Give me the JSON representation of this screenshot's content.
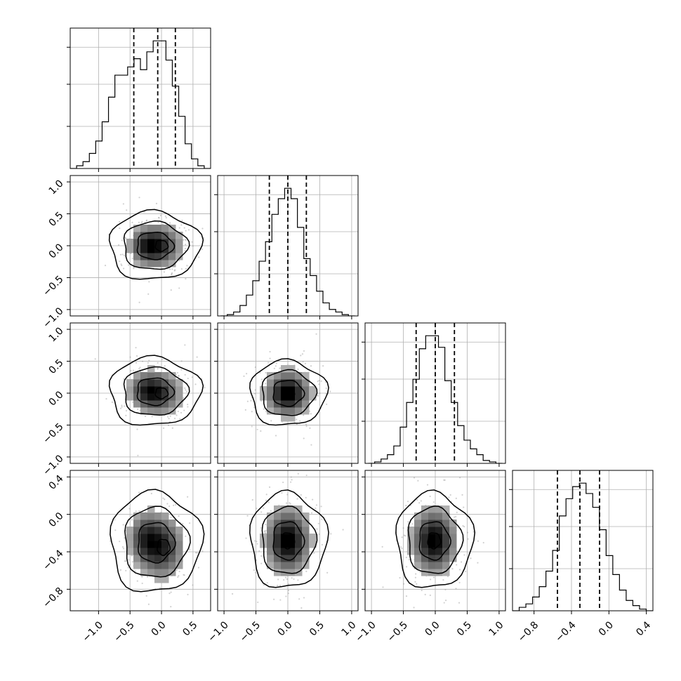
{
  "chart_data": {
    "type": "corner",
    "n_params": 4,
    "grid": true,
    "quantiles": [
      0.16,
      0.5,
      0.84
    ],
    "parameters": [
      {
        "range": [
          -1.45,
          0.78
        ],
        "ticks": [
          -1.0,
          -0.5,
          0.0,
          0.5
        ],
        "tick_labels": [
          "−1.0",
          "−0.5",
          "0.0",
          "0.5"
        ],
        "hist_edges_lo": -1.45,
        "hist_edges_hi": 0.78,
        "hist_counts": [
          0,
          2,
          5,
          11,
          20,
          34,
          52,
          68,
          68,
          74,
          80,
          72,
          85,
          93,
          93,
          79,
          60,
          38,
          18,
          7,
          2,
          0
        ],
        "quantile_values": [
          -0.44,
          -0.06,
          0.22
        ]
      },
      {
        "range": [
          -1.1,
          1.1
        ],
        "ticks": [
          -1.0,
          -0.5,
          0.0,
          0.5,
          1.0
        ],
        "tick_labels": [
          "−1.0",
          "−0.5",
          "0.0",
          "0.5",
          "1.0"
        ],
        "hist_edges_lo": -1.05,
        "hist_edges_hi": 1.05,
        "hist_counts": [
          0,
          1,
          3,
          8,
          16,
          27,
          42,
          57,
          78,
          90,
          98,
          90,
          68,
          44,
          31,
          19,
          10,
          5,
          3,
          1,
          0
        ],
        "quantile_values": [
          -0.29,
          0.0,
          0.29
        ]
      },
      {
        "range": [
          -1.1,
          1.1
        ],
        "ticks": [
          -1.0,
          -0.5,
          0.0,
          0.5,
          1.0
        ],
        "tick_labels": [
          "−1.0",
          "−0.5",
          "0.0",
          "0.5",
          "1.0"
        ],
        "hist_edges_lo": -1.05,
        "hist_edges_hi": 1.05,
        "hist_counts": [
          0,
          1,
          3,
          6,
          12,
          25,
          42,
          58,
          79,
          88,
          88,
          80,
          57,
          42,
          26,
          16,
          10,
          6,
          2,
          1,
          0
        ],
        "quantile_values": [
          -0.3,
          0.0,
          0.3
        ]
      },
      {
        "range": [
          -1.03,
          0.47
        ],
        "ticks": [
          -0.8,
          -0.4,
          0.0,
          0.4
        ],
        "tick_labels": [
          "−0.8",
          "−0.4",
          "0.0",
          "0.4"
        ],
        "hist_edges_lo": -1.03,
        "hist_edges_hi": 0.47,
        "hist_counts": [
          0,
          2,
          4,
          8,
          14,
          23,
          35,
          55,
          65,
          72,
          74,
          68,
          60,
          47,
          32,
          21,
          12,
          6,
          3,
          1,
          0
        ],
        "quantile_values": [
          -0.55,
          -0.31,
          -0.1
        ]
      }
    ],
    "correlations": {
      "1-0": {
        "center": [
          0.0,
          0.0
        ],
        "secondary_mode": [
          -0.28,
          0.0
        ]
      },
      "2-0": {
        "center": [
          0.0,
          0.0
        ],
        "secondary_mode": [
          -0.28,
          0.05
        ]
      },
      "2-1": {
        "center": [
          0.0,
          0.0
        ]
      },
      "3-0": {
        "center": [
          0.03,
          -0.35
        ],
        "secondary_mode": [
          -0.28,
          -0.25
        ]
      },
      "3-1": {
        "center": [
          0.0,
          -0.28
        ]
      },
      "3-2": {
        "center": [
          -0.02,
          -0.28
        ]
      }
    },
    "colors": {
      "lines": "#000000",
      "grid": "#b0b0b0",
      "points": "#9a9a9a",
      "density_max": "#000000"
    }
  }
}
